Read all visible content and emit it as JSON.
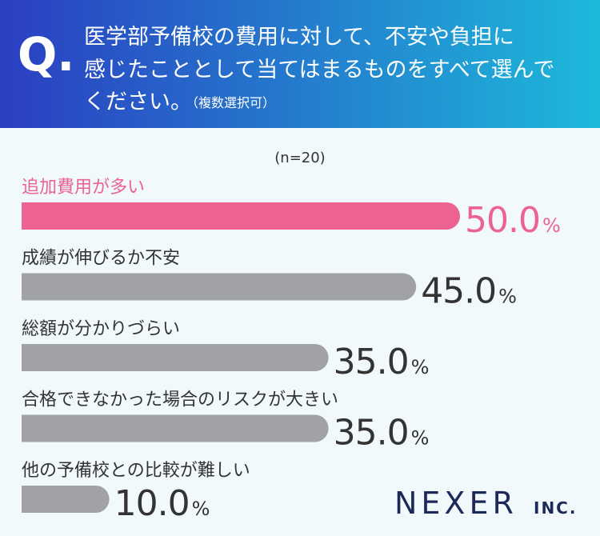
{
  "chart_data": {
    "type": "bar",
    "q_mark": "Q.",
    "title": [
      "医学部予備校の費用に対して、不安や負担に",
      "感じたこととして当てはまるものをすべて選んで",
      "ください。"
    ],
    "title_note": "（複数選択可）",
    "subtitle": "(n=20)",
    "categories": [
      "追加費用が多い",
      "成績が伸びるか不安",
      "総額が分かりづらい",
      "合格できなかった場合のリスクが大きい",
      "他の予備校との比較が難しい"
    ],
    "values": [
      50,
      45,
      35,
      35,
      10
    ],
    "value_labels": [
      "50.0%",
      "45.0%",
      "35.0%",
      "35.0%",
      "10.0%"
    ],
    "colors": [
      "#ec6391",
      "#a0a2a6",
      "#a0a2a6",
      "#a0a2a6",
      "#a0a2a6"
    ],
    "logo": "NEXER",
    "logo_suffix": "INC."
  }
}
